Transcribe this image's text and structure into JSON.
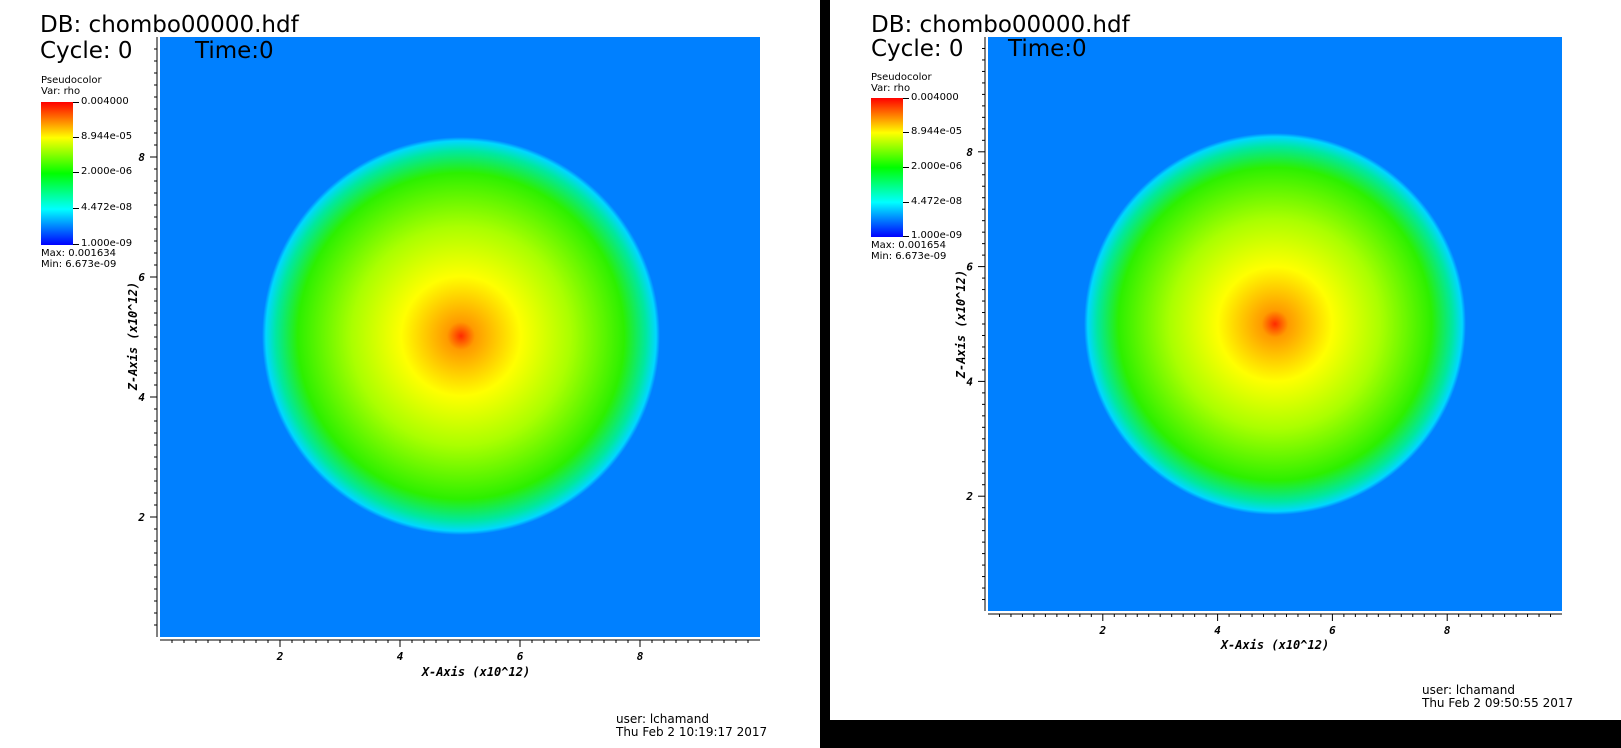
{
  "colors": {
    "background_field": "#0080ff",
    "colormap": [
      "#0000ff",
      "#00ffff",
      "#00ff00",
      "#ffff00",
      "#ff0000"
    ]
  },
  "panels": [
    {
      "db_title": "DB: chombo00000.hdf",
      "cycle_label": "Cycle: 0",
      "time_label": "Time:0",
      "legend": {
        "plot_type": "Pseudocolor",
        "var_label": "Var: rho",
        "tick_labels": [
          "0.004000",
          "8.944e-05",
          "2.000e-06",
          "4.472e-08",
          "1.000e-09"
        ],
        "max_label": "Max:  0.001634",
        "min_label": "Min:  6.673e-09"
      },
      "x_axis_title": "X-Axis (x10^12)",
      "y_axis_title": "Z-Axis (x10^12)",
      "x_ticks": [
        "2",
        "4",
        "6",
        "8"
      ],
      "y_ticks": [
        "2",
        "4",
        "6",
        "8"
      ],
      "user_label": "user: lchamand",
      "timestamp": "Thu Feb  2 10:19:17 2017"
    },
    {
      "db_title": "DB: chombo00000.hdf",
      "cycle_label": "Cycle: 0",
      "time_label": "Time:0",
      "legend": {
        "plot_type": "Pseudocolor",
        "var_label": "Var: rho",
        "tick_labels": [
          "0.004000",
          "8.944e-05",
          "2.000e-06",
          "4.472e-08",
          "1.000e-09"
        ],
        "max_label": "Max:  0.001654",
        "min_label": "Min:  6.673e-09"
      },
      "x_axis_title": "X-Axis (x10^12)",
      "y_axis_title": "Z-Axis (x10^12)",
      "x_ticks": [
        "2",
        "4",
        "6",
        "8"
      ],
      "y_ticks": [
        "2",
        "4",
        "6",
        "8"
      ],
      "user_label": "user: lchamand",
      "timestamp": "Thu Feb  2 09:50:55 2017"
    }
  ]
}
